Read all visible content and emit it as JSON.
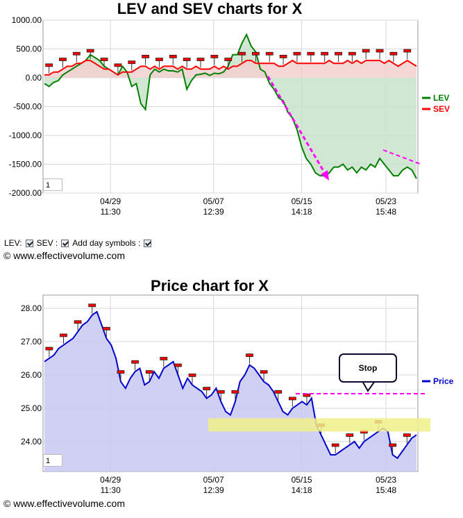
{
  "chart_data": [
    {
      "type": "line",
      "title": "LEV and SEV charts for X",
      "x_ticks": [
        {
          "date": "04/29",
          "time": "11:30"
        },
        {
          "date": "05/07",
          "time": "12:39"
        },
        {
          "date": "05/15",
          "time": "14:18"
        },
        {
          "date": "05/23",
          "time": "15:48"
        }
      ],
      "y_ticks": [
        "1000.00",
        "500.00",
        "0.00",
        "-500.00",
        "-1000.00",
        "-1500.00",
        "-2000.00"
      ],
      "ylim": [
        -2000,
        1000
      ],
      "grid": true,
      "legend_position": "right",
      "series": [
        {
          "name": "LEV",
          "color": "#008000",
          "fill": "#c9e3c9",
          "values": [
            -100,
            -150,
            -80,
            -50,
            50,
            100,
            150,
            200,
            250,
            300,
            400,
            350,
            300,
            200,
            150,
            100,
            50,
            200,
            100,
            -150,
            -100,
            -450,
            -550,
            50,
            150,
            100,
            150,
            120,
            120,
            100,
            150,
            -200,
            -50,
            50,
            60,
            80,
            40,
            80,
            70,
            100,
            200,
            400,
            400,
            600,
            750,
            550,
            450,
            150,
            100,
            -100,
            -200,
            -350,
            -400,
            -600,
            -700,
            -900,
            -1200,
            -1400,
            -1500,
            -1650,
            -1700,
            -1700,
            -1650,
            -1550,
            -1550,
            -1500,
            -1600,
            -1550,
            -1650,
            -1550,
            -1600,
            -1500,
            -1550,
            -1400,
            -1500,
            -1600,
            -1700,
            -1700,
            -1600,
            -1550,
            -1600,
            -1750
          ]
        },
        {
          "name": "SEV",
          "color": "#ff0000",
          "fill": "#f2d0d0",
          "values": [
            50,
            50,
            100,
            100,
            150,
            200,
            200,
            250,
            250,
            300,
            300,
            250,
            200,
            150,
            150,
            100,
            50,
            100,
            100,
            100,
            150,
            200,
            200,
            150,
            200,
            150,
            200,
            200,
            200,
            150,
            200,
            150,
            150,
            200,
            150,
            150,
            150,
            200,
            150,
            200,
            150,
            200,
            200,
            250,
            300,
            300,
            250,
            250,
            250,
            250,
            250,
            200,
            200,
            250,
            300,
            250,
            250,
            250,
            250,
            250,
            250,
            250,
            300,
            250,
            250,
            250,
            300,
            250,
            300,
            250,
            300,
            300,
            300,
            300,
            250,
            300,
            250,
            200,
            250,
            300,
            250,
            200
          ]
        }
      ],
      "zoom_value": "1"
    },
    {
      "type": "area",
      "title": "Price chart for X",
      "x_ticks": [
        {
          "date": "04/29",
          "time": "11:30"
        },
        {
          "date": "05/07",
          "time": "12:39"
        },
        {
          "date": "05/15",
          "time": "14:18"
        },
        {
          "date": "05/23",
          "time": "15:48"
        }
      ],
      "y_ticks": [
        "28.00",
        "27.00",
        "26.00",
        "25.00",
        "24.00"
      ],
      "ylim": [
        23.1,
        28.4
      ],
      "grid": true,
      "legend_position": "right",
      "series": [
        {
          "name": "Price",
          "color": "#0000cc",
          "fill": "#c8c8f2",
          "values": [
            26.4,
            26.5,
            26.6,
            26.8,
            26.9,
            27.0,
            27.1,
            27.3,
            27.5,
            27.6,
            27.8,
            27.9,
            27.5,
            27.1,
            26.9,
            26.5,
            25.8,
            25.6,
            25.9,
            26.1,
            26.2,
            25.7,
            25.8,
            26.1,
            25.9,
            26.2,
            26.3,
            26.4,
            26.0,
            25.6,
            25.9,
            25.7,
            25.6,
            25.5,
            25.3,
            25.4,
            25.6,
            25.2,
            24.9,
            24.8,
            25.2,
            25.8,
            26.0,
            26.3,
            26.2,
            26.0,
            25.8,
            25.7,
            25.5,
            25.2,
            24.9,
            24.8,
            25.0,
            25.1,
            25.2,
            25.1,
            25.3,
            24.5,
            24.2,
            23.9,
            23.6,
            23.6,
            23.7,
            23.8,
            23.9,
            24.0,
            23.8,
            24.0,
            24.1,
            24.2,
            24.3,
            24.4,
            24.3,
            23.6,
            23.5,
            23.7,
            23.9,
            24.1,
            24.2
          ]
        }
      ],
      "zoom_value": "1"
    }
  ],
  "controls": {
    "lev_label": "LEV:",
    "sev_label": "SEV :",
    "day_symbols_label": "Add day symbols :"
  },
  "annotations": {
    "stop_label": "Stop",
    "trend_color": "#ff00ff",
    "zone_color": "#f0f08a",
    "marker_color": "#ff0000"
  },
  "copyright": "© www.effectivevolume.com"
}
